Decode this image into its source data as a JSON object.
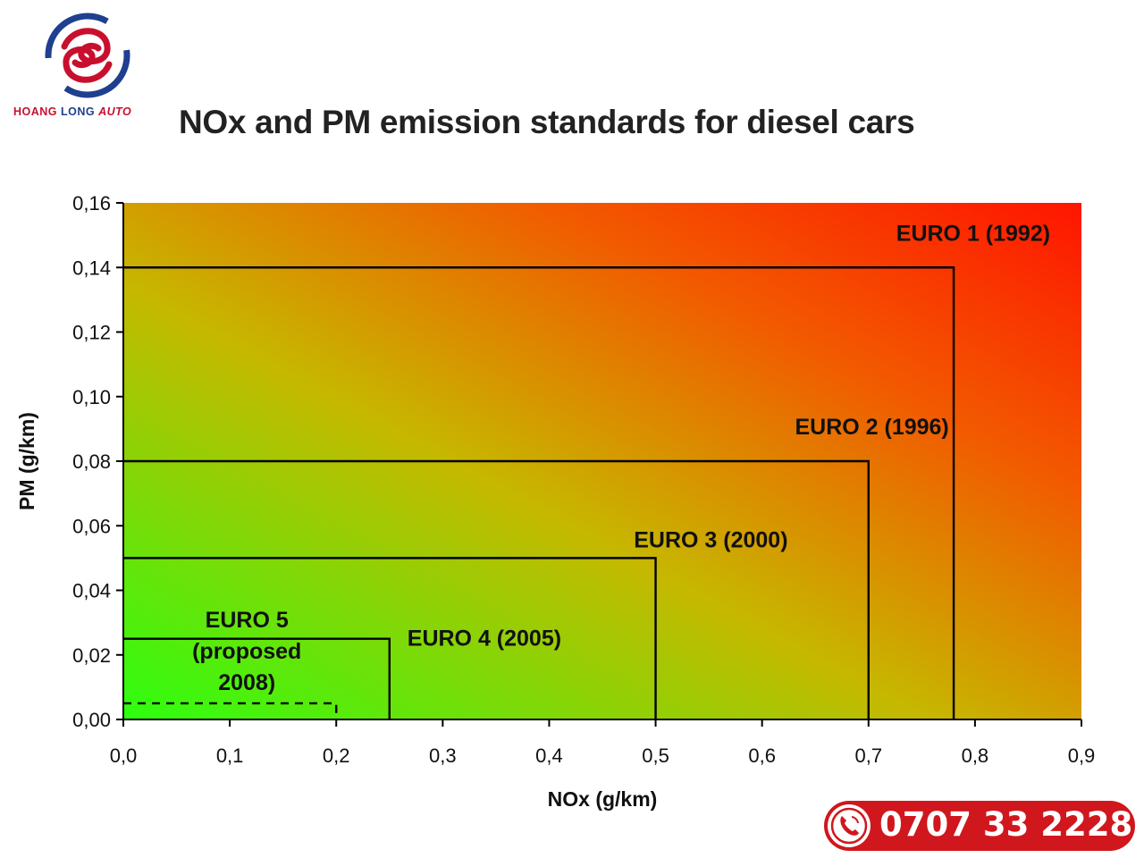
{
  "logo": {
    "icon": "hoang-long-auto-logo",
    "brand_part1": "HOANG",
    "brand_part2": " LONG ",
    "brand_part3": "AUTO",
    "colors": {
      "red": "#c8102e",
      "blue": "#1f3f8f"
    }
  },
  "chart_data": {
    "type": "area",
    "title": "NOx and PM emission standards for diesel cars",
    "xlabel": "NOx (g/km)",
    "ylabel": "PM (g/km)",
    "xlim": [
      0,
      0.9
    ],
    "ylim": [
      0,
      0.16
    ],
    "x_ticks": [
      {
        "value": 0.0,
        "label": "0,0"
      },
      {
        "value": 0.1,
        "label": "0,1"
      },
      {
        "value": 0.2,
        "label": "0,2"
      },
      {
        "value": 0.3,
        "label": "0,3"
      },
      {
        "value": 0.4,
        "label": "0,4"
      },
      {
        "value": 0.5,
        "label": "0,5"
      },
      {
        "value": 0.6,
        "label": "0,6"
      },
      {
        "value": 0.7,
        "label": "0,7"
      },
      {
        "value": 0.8,
        "label": "0,8"
      },
      {
        "value": 0.9,
        "label": "0,9"
      }
    ],
    "y_ticks": [
      {
        "value": 0.0,
        "label": "0,00"
      },
      {
        "value": 0.02,
        "label": "0,02"
      },
      {
        "value": 0.04,
        "label": "0,04"
      },
      {
        "value": 0.06,
        "label": "0,06"
      },
      {
        "value": 0.08,
        "label": "0,08"
      },
      {
        "value": 0.1,
        "label": "0,10"
      },
      {
        "value": 0.12,
        "label": "0,12"
      },
      {
        "value": 0.14,
        "label": "0,14"
      },
      {
        "value": 0.16,
        "label": "0,16"
      }
    ],
    "grid": false,
    "background": "gradient green (bottom-left) to red (top-right)",
    "standards": [
      {
        "name": "EURO 1 (1992)",
        "nox": 0.78,
        "pm": 0.14,
        "style": "solid"
      },
      {
        "name": "EURO 2 (1996)",
        "nox": 0.7,
        "pm": 0.08,
        "style": "solid"
      },
      {
        "name": "EURO 3 (2000)",
        "nox": 0.5,
        "pm": 0.05,
        "style": "solid"
      },
      {
        "name": "EURO 4 (2005)",
        "nox": 0.25,
        "pm": 0.025,
        "style": "solid"
      },
      {
        "name": "EURO 5 (proposed 2008)",
        "label_lines": [
          "EURO 5",
          "(proposed",
          "2008)"
        ],
        "nox": 0.2,
        "pm": 0.005,
        "style": "dashed"
      }
    ]
  },
  "phone": {
    "number": "0707 33 2228",
    "icon": "phone-icon",
    "color": "#d0171d"
  }
}
